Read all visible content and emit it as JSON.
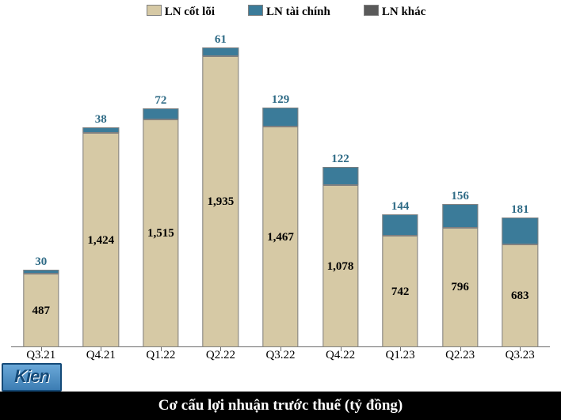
{
  "chart": {
    "type": "stacked-bar",
    "title": "Cơ cấu lợi nhuận trước thuế (tỷ đồng)",
    "title_color": "#ffffff",
    "title_fontsize": 19,
    "footer_bg": "#000000",
    "background_color": "#ffffff",
    "categories": [
      "Q3.21",
      "Q4.21",
      "Q1.22",
      "Q2.22",
      "Q3.22",
      "Q4.22",
      "Q1.23",
      "Q2.23",
      "Q3.23"
    ],
    "legend": [
      {
        "key": "core",
        "name": "LN cốt lõi",
        "color": "#d6c9a5"
      },
      {
        "key": "fin",
        "name": "LN tài chính",
        "color": "#3b7b99"
      },
      {
        "key": "other",
        "name": "LN khác",
        "color": "#5a5a5a"
      }
    ],
    "series": {
      "core": [
        487,
        1424,
        1515,
        1935,
        1467,
        1078,
        742,
        796,
        683
      ],
      "fin": [
        30,
        38,
        72,
        61,
        129,
        122,
        144,
        156,
        181
      ],
      "other": [
        0,
        0,
        0,
        0,
        0,
        0,
        0,
        0,
        0
      ]
    },
    "value_labels": {
      "core": [
        "487",
        "1,424",
        "1,515",
        "1,935",
        "1,467",
        "1,078",
        "742",
        "796",
        "683"
      ],
      "fin": [
        "30",
        "38",
        "72",
        "61",
        "129",
        "122",
        "144",
        "156",
        "181"
      ]
    },
    "label_color": {
      "core": "#000000",
      "fin": "#2f6b86"
    },
    "bar_border": "#808080",
    "y_max": 2100,
    "axis_color": "#6b6b6b",
    "font_family": "Times New Roman",
    "value_fontsize": 15,
    "xtick_fontsize": 15
  },
  "logo": {
    "text": "Kien"
  }
}
